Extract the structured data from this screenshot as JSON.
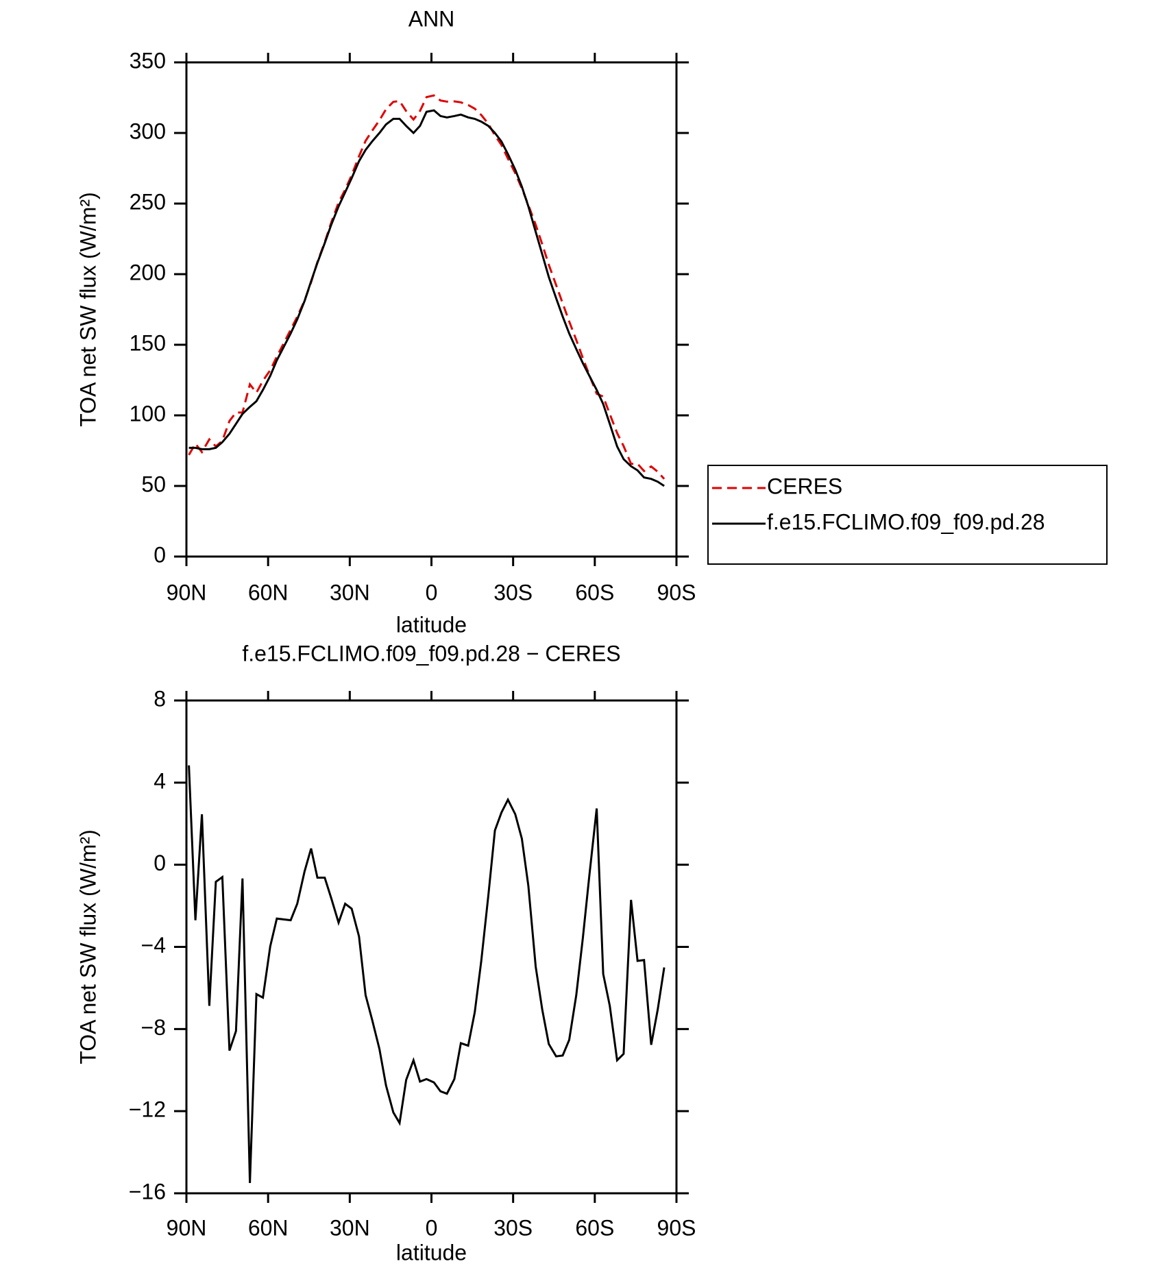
{
  "chart_data": [
    {
      "type": "line",
      "title": "ANN",
      "xlabel": "latitude",
      "ylabel": "TOA net SW flux (W/m²)",
      "x": [
        89.1,
        86.7,
        84.3,
        81.6,
        79.2,
        76.8,
        74.2,
        71.8,
        69.4,
        66.7,
        64.3,
        61.9,
        59.2,
        56.8,
        51.7,
        49.3,
        46.6,
        44.2,
        41.9,
        39.2,
        36.8,
        34.1,
        31.7,
        29.3,
        26.6,
        24.2,
        21.8,
        19.1,
        16.7,
        14.0,
        11.7,
        9.3,
        6.6,
        4.2,
        1.8,
        -0.9,
        -3.3,
        -5.7,
        -8.4,
        -10.8,
        -13.5,
        -15.9,
        -18.3,
        -20.9,
        -23.3,
        -25.7,
        -28.1,
        -30.8,
        -33.2,
        -35.6,
        -38.3,
        -40.7,
        -43.1,
        -45.8,
        -48.2,
        -50.6,
        -53.2,
        -55.6,
        -58.0,
        -60.7,
        -63.1,
        -65.5,
        -68.2,
        -70.6,
        -73.3,
        -75.7,
        -78.1,
        -80.7,
        -83.1,
        -85.5
      ],
      "series": [
        {
          "name": "CERES",
          "color": "#e00000",
          "dash": "dashed",
          "values": [
            72,
            80,
            74,
            83,
            78,
            82,
            96,
            102,
            102,
            122,
            116,
            124.5,
            132,
            141.6,
            160.7,
            169.9,
            181.3,
            194.2,
            208.6,
            222.6,
            236.6,
            250.8,
            259.9,
            270.1,
            283.5,
            294.4,
            301.5,
            309,
            316.8,
            322.1,
            322.6,
            315.5,
            309.5,
            315.6,
            325.4,
            326.6,
            323,
            322.2,
            322.4,
            321.7,
            319.8,
            317.2,
            312.7,
            306.5,
            298.3,
            291.5,
            281.8,
            271.5,
            260.7,
            249,
            235,
            221.1,
            206.7,
            192.3,
            179.3,
            166.5,
            153.4,
            140.6,
            128.5,
            115.3,
            113.3,
            100.9,
            87.5,
            78.2,
            65.7,
            65.7,
            60.6,
            63.8,
            60.1,
            55
          ]
        },
        {
          "name": "f.e15.FCLIMO.f09_f09.pd.28",
          "color": "#000000",
          "dash": "solid",
          "values": [
            77,
            77,
            76,
            76,
            77,
            81,
            87,
            94,
            101,
            106,
            110,
            118,
            128,
            139,
            158,
            168,
            181,
            195,
            208,
            222,
            235,
            248,
            258,
            268,
            280,
            288,
            294,
            300,
            306,
            310,
            310,
            305,
            300,
            305,
            315,
            316,
            312,
            311,
            312,
            313,
            311,
            310,
            308,
            305,
            300,
            294,
            285,
            274,
            262,
            248,
            230,
            214,
            198,
            183,
            170,
            158,
            147,
            137,
            128,
            118,
            108,
            94,
            78,
            69,
            64,
            61,
            56,
            55,
            53,
            50
          ]
        }
      ],
      "xlim": [
        90,
        -90
      ],
      "xticks": [
        {
          "value": 90,
          "label": "90N"
        },
        {
          "value": 60,
          "label": "60N"
        },
        {
          "value": 30,
          "label": "30N"
        },
        0,
        {
          "value": -30,
          "label": "30S"
        },
        {
          "value": -60,
          "label": "60S"
        },
        {
          "value": -90,
          "label": "90S"
        }
      ],
      "ylim": [
        0,
        350
      ],
      "yticks": [
        0,
        50,
        100,
        150,
        200,
        250,
        300,
        350
      ],
      "legend": "right"
    },
    {
      "type": "line",
      "title": "f.e15.FCLIMO.f09_f09.pd.28 − CERES",
      "xlabel": "latitude",
      "ylabel": "TOA net SW flux (W/m²)",
      "x": [
        89.1,
        86.7,
        84.3,
        81.6,
        79.2,
        76.8,
        74.2,
        71.8,
        69.4,
        66.7,
        64.3,
        61.9,
        59.2,
        56.8,
        51.7,
        49.3,
        46.6,
        44.2,
        41.9,
        39.2,
        36.8,
        34.1,
        31.7,
        29.3,
        26.6,
        24.2,
        21.8,
        19.1,
        16.7,
        14.0,
        11.7,
        9.3,
        6.6,
        4.2,
        1.8,
        -0.9,
        -3.3,
        -5.7,
        -8.4,
        -10.8,
        -13.5,
        -15.9,
        -18.3,
        -20.9,
        -23.3,
        -25.7,
        -28.1,
        -30.8,
        -33.2,
        -35.6,
        -38.3,
        -40.7,
        -43.1,
        -45.8,
        -48.2,
        -50.6,
        -53.2,
        -55.6,
        -58.0,
        -60.7,
        -63.1,
        -65.5,
        -68.2,
        -70.6,
        -73.3,
        -75.7,
        -78.1,
        -80.7,
        -83.1,
        -85.5
      ],
      "values": [
        4.84,
        -2.7,
        2.46,
        -6.87,
        -0.83,
        -0.6,
        -9.05,
        -8.1,
        -0.67,
        -15.5,
        -6.3,
        -6.47,
        -3.97,
        -2.62,
        -2.7,
        -1.9,
        -0.32,
        0.79,
        -0.63,
        -0.63,
        -1.63,
        -2.82,
        -1.9,
        -2.14,
        -3.49,
        -6.35,
        -7.54,
        -8.97,
        -10.75,
        -12.06,
        -12.58,
        -10.48,
        -9.52,
        -10.56,
        -10.44,
        -10.6,
        -11.03,
        -11.15,
        -10.44,
        -8.69,
        -8.81,
        -7.18,
        -4.68,
        -1.5,
        1.67,
        2.54,
        3.17,
        2.46,
        1.27,
        -1.03,
        -4.96,
        -7.06,
        -8.73,
        -9.33,
        -9.29,
        -8.53,
        -6.35,
        -3.57,
        -0.52,
        2.74,
        -5.32,
        -6.87,
        -9.52,
        -9.21,
        -1.71,
        -4.68,
        -4.64,
        -8.77,
        -7.06,
        -5.0
      ],
      "color": "#000000",
      "xlim": [
        90,
        -90
      ],
      "xticks": [
        {
          "value": 90,
          "label": "90N"
        },
        {
          "value": 60,
          "label": "60N"
        },
        {
          "value": 30,
          "label": "30N"
        },
        0,
        {
          "value": -30,
          "label": "30S"
        },
        {
          "value": -60,
          "label": "60S"
        },
        {
          "value": -90,
          "label": "90S"
        }
      ],
      "ylim": [
        -16,
        8
      ],
      "yticks": [
        {
          "value": -16,
          "label": "−16"
        },
        {
          "value": -12,
          "label": "−12"
        },
        {
          "value": -8,
          "label": "−8"
        },
        {
          "value": -4,
          "label": "−4"
        },
        0,
        4,
        8
      ]
    }
  ]
}
